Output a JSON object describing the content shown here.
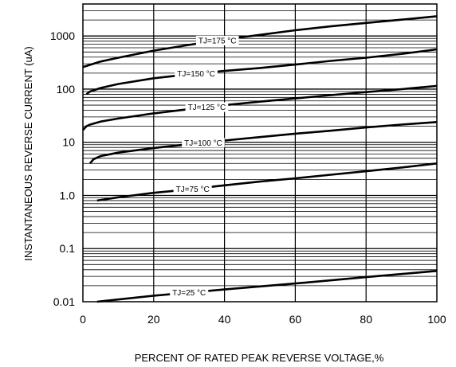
{
  "chart_data": {
    "type": "line",
    "title": "",
    "xlabel": "PERCENT OF RATED PEAK REVERSE VOLTAGE,%",
    "ylabel": "INSTANTANEOUS REVERSE CURRENT (uA)",
    "xlim": [
      0,
      100
    ],
    "ylim": [
      0.01,
      4000
    ],
    "y_scale": "log",
    "grid": true,
    "legend": "none",
    "x_ticks": [
      {
        "value": 0,
        "label": "0"
      },
      {
        "value": 20,
        "label": "20"
      },
      {
        "value": 40,
        "label": "40"
      },
      {
        "value": 60,
        "label": "60"
      },
      {
        "value": 80,
        "label": "80"
      },
      {
        "value": 100,
        "label": "100"
      }
    ],
    "y_ticks": [
      {
        "value": 0.01,
        "label": "0.01"
      },
      {
        "value": 0.1,
        "label": "0.1"
      },
      {
        "value": 1,
        "label": "1.0"
      },
      {
        "value": 10,
        "label": "10"
      },
      {
        "value": 100,
        "label": "100"
      },
      {
        "value": 1000,
        "label": "1000"
      }
    ],
    "series": [
      {
        "name": "TJ=175 °C",
        "label_x": 38,
        "x": [
          0,
          5,
          10,
          20,
          30,
          40,
          50,
          60,
          70,
          80,
          90,
          100
        ],
        "y": [
          260,
          330,
          390,
          530,
          680,
          860,
          1050,
          1280,
          1520,
          1760,
          2030,
          2350
        ]
      },
      {
        "name": "TJ=150 °C",
        "label_x": 32,
        "x": [
          1,
          2,
          5,
          10,
          20,
          30,
          40,
          50,
          60,
          70,
          80,
          90,
          100
        ],
        "y": [
          80,
          90,
          105,
          125,
          160,
          190,
          220,
          250,
          290,
          340,
          390,
          460,
          560
        ]
      },
      {
        "name": "TJ=125 °C",
        "label_x": 35,
        "x": [
          0,
          1,
          2,
          5,
          10,
          20,
          30,
          40,
          50,
          60,
          70,
          80,
          90,
          100
        ],
        "y": [
          17,
          20,
          21.5,
          24.5,
          28,
          35,
          42,
          50,
          58,
          67,
          77,
          88,
          100,
          115
        ]
      },
      {
        "name": "TJ=100 °C",
        "label_x": 34,
        "x": [
          2,
          3,
          5,
          10,
          20,
          30,
          40,
          50,
          60,
          70,
          80,
          90,
          100
        ],
        "y": [
          4,
          4.8,
          5.5,
          6.4,
          7.8,
          9.2,
          10.8,
          12.5,
          14.5,
          16.5,
          19,
          21.5,
          24
        ]
      },
      {
        "name": "TJ=75 °C",
        "label_x": 31,
        "x": [
          4,
          10,
          20,
          30,
          40,
          50,
          60,
          70,
          80,
          90,
          100
        ],
        "y": [
          0.8,
          0.92,
          1.12,
          1.3,
          1.55,
          1.82,
          2.1,
          2.45,
          2.85,
          3.35,
          4
        ]
      },
      {
        "name": "TJ=25 °C",
        "label_x": 30,
        "x": [
          4,
          20,
          40,
          60,
          80,
          100
        ],
        "y": [
          0.01,
          0.013,
          0.017,
          0.022,
          0.029,
          0.038
        ]
      }
    ]
  }
}
